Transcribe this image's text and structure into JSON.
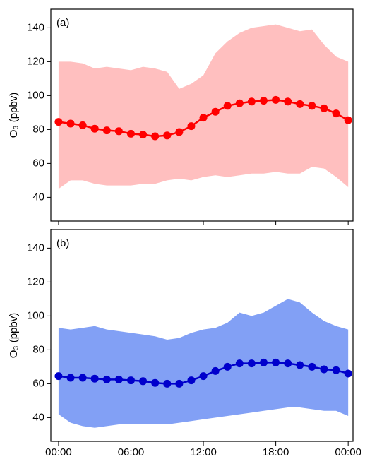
{
  "chart_data": [
    {
      "type": "line",
      "annotation": "(a)",
      "ylabel": "O₃ (ppbv)",
      "x": [
        0,
        1,
        2,
        3,
        4,
        5,
        6,
        7,
        8,
        9,
        10,
        11,
        12,
        13,
        14,
        15,
        16,
        17,
        18,
        19,
        20,
        21,
        22,
        23,
        24
      ],
      "series": [
        {
          "color": "#ff0000",
          "values": [
            84.5,
            83.5,
            82.5,
            80.5,
            79.5,
            79,
            77.5,
            77,
            76,
            76.5,
            78.5,
            82,
            87,
            90.5,
            94,
            95.5,
            96.5,
            97,
            97.5,
            96.5,
            95,
            94,
            92.5,
            89.5,
            85.5
          ]
        }
      ],
      "band": {
        "color": "#ffbfbf",
        "upper": [
          120,
          120,
          119,
          116,
          117,
          116,
          115,
          117,
          116,
          114,
          104,
          107,
          112,
          125,
          132,
          137,
          140,
          141,
          142,
          140,
          138,
          139,
          130,
          123,
          120
        ],
        "lower": [
          45,
          50,
          50,
          48,
          47,
          47,
          47,
          48,
          48,
          50,
          51,
          50,
          52,
          53,
          52,
          53,
          54,
          54,
          55,
          54,
          54,
          58,
          57,
          52,
          46
        ]
      },
      "xlim": [
        -0.64,
        24.4
      ],
      "xticks": [
        0,
        6,
        12,
        18,
        24
      ],
      "ylim": [
        26,
        151
      ],
      "yticks": [
        40,
        60,
        80,
        100,
        120,
        140
      ]
    },
    {
      "type": "line",
      "annotation": "(b)",
      "ylabel": "O₃ (ppbv)",
      "x": [
        0,
        1,
        2,
        3,
        4,
        5,
        6,
        7,
        8,
        9,
        10,
        11,
        12,
        13,
        14,
        15,
        16,
        17,
        18,
        19,
        20,
        21,
        22,
        23,
        24
      ],
      "series": [
        {
          "color": "#0000cc",
          "values": [
            64.5,
            63.5,
            63.5,
            63,
            62.5,
            62.5,
            62,
            61.5,
            60.5,
            60,
            60,
            62,
            64.5,
            67.5,
            70,
            72,
            72,
            72.5,
            72.5,
            72,
            71,
            70,
            68.5,
            68,
            66
          ]
        }
      ],
      "band": {
        "color": "#82a0f5",
        "upper": [
          93,
          92,
          93,
          94,
          92,
          91,
          90,
          89,
          88,
          86,
          87,
          90,
          92,
          93,
          96,
          102,
          100,
          102,
          106,
          110,
          108,
          102,
          97,
          94,
          92
        ],
        "lower": [
          42,
          37,
          35,
          34,
          35,
          36,
          36,
          36,
          36,
          36,
          37,
          38,
          39,
          40,
          41,
          42,
          43,
          44,
          45,
          46,
          46,
          45,
          44,
          44,
          41
        ]
      },
      "xlim": [
        -0.64,
        24.4
      ],
      "xticks": [
        {
          "value": 0,
          "label": "00:00"
        },
        {
          "value": 6,
          "label": "06:00"
        },
        {
          "value": 12,
          "label": "12:00"
        },
        {
          "value": 18,
          "label": "18:00"
        },
        {
          "value": 24,
          "label": "00:00"
        }
      ],
      "ylim": [
        26,
        151
      ],
      "yticks": [
        40,
        60,
        80,
        100,
        120,
        140
      ]
    }
  ]
}
